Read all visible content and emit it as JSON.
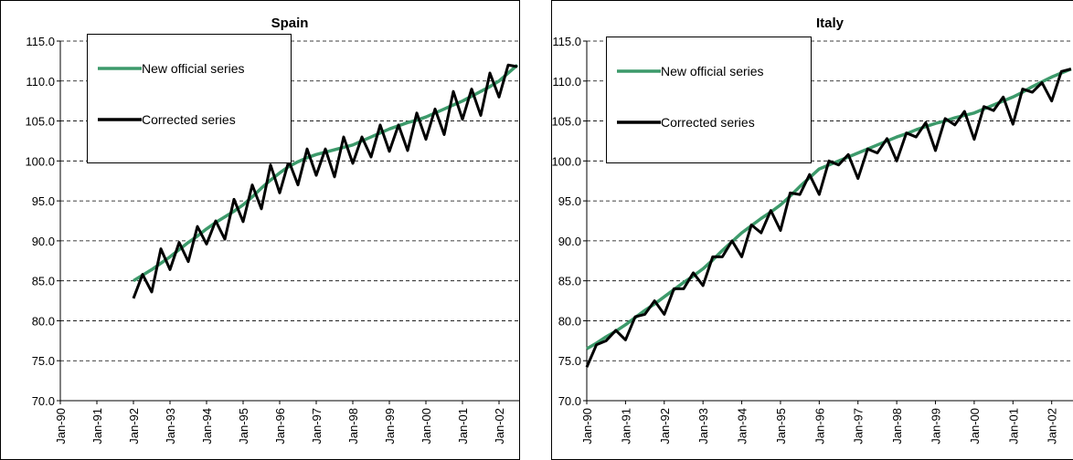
{
  "chart_data": [
    {
      "type": "line",
      "title": "Spain",
      "x": [
        1992,
        1992.25,
        1992.5,
        1992.75,
        1993,
        1993.25,
        1993.5,
        1993.75,
        1994,
        1994.25,
        1994.5,
        1994.75,
        1995,
        1995.25,
        1995.5,
        1995.75,
        1996,
        1996.25,
        1996.5,
        1996.75,
        1997,
        1997.25,
        1997.5,
        1997.75,
        1998,
        1998.25,
        1998.5,
        1998.75,
        1999,
        1999.25,
        1999.5,
        1999.75,
        2000,
        2000.25,
        2000.5,
        2000.75,
        2001,
        2001.25,
        2001.5,
        2001.75,
        2002,
        2002.25,
        2002.5
      ],
      "series": [
        {
          "name": "New official series",
          "color": "#3d9a6b",
          "values": [
            85,
            85.7,
            86.4,
            87.2,
            88,
            88.9,
            89.8,
            90.6,
            91.5,
            92.3,
            93,
            93.7,
            94.5,
            95.5,
            96.6,
            97.6,
            98.5,
            99.3,
            99.9,
            100.4,
            100.8,
            101.1,
            101.4,
            101.7,
            102,
            102.5,
            103,
            103.5,
            104,
            104.4,
            104.8,
            105.1,
            105.5,
            106,
            106.5,
            107,
            107.5,
            108.1,
            108.7,
            109.3,
            110,
            111,
            112
          ]
        },
        {
          "name": "Corrected series",
          "color": "#000000",
          "values": [
            82.8,
            85.8,
            83.6,
            89,
            86.4,
            89.8,
            87.4,
            91.8,
            89.6,
            92.5,
            90.2,
            95.2,
            92.4,
            97,
            94,
            99.5,
            96,
            100,
            97,
            101.5,
            98.2,
            101.5,
            98,
            103,
            99.7,
            103,
            100.5,
            104.5,
            101.2,
            104.5,
            101.3,
            106,
            102.7,
            106.5,
            103.3,
            108.7,
            105.2,
            109,
            105.7,
            111,
            108,
            112,
            111.8
          ]
        }
      ],
      "xlim": [
        1990,
        2002.55
      ],
      "ylim": [
        70,
        115
      ],
      "xticks": [
        {
          "value": 1990,
          "label": "Jan-90"
        },
        {
          "value": 1991,
          "label": "Jan-91"
        },
        {
          "value": 1992,
          "label": "Jan-92"
        },
        {
          "value": 1993,
          "label": "Jan-93"
        },
        {
          "value": 1994,
          "label": "Jan-94"
        },
        {
          "value": 1995,
          "label": "Jan-95"
        },
        {
          "value": 1996,
          "label": "Jan-96"
        },
        {
          "value": 1997,
          "label": "Jan-97"
        },
        {
          "value": 1998,
          "label": "Jan-98"
        },
        {
          "value": 1999,
          "label": "Jan-99"
        },
        {
          "value": 2000,
          "label": "Jan-00"
        },
        {
          "value": 2001,
          "label": "Jan-01"
        },
        {
          "value": 2002,
          "label": "Jan-02"
        }
      ],
      "yticks": [
        {
          "value": 70,
          "label": "70.0"
        },
        {
          "value": 75,
          "label": "75.0"
        },
        {
          "value": 80,
          "label": "80.0"
        },
        {
          "value": 85,
          "label": "85.0"
        },
        {
          "value": 90,
          "label": "90.0"
        },
        {
          "value": 95,
          "label": "95.0"
        },
        {
          "value": 100,
          "label": "100.0"
        },
        {
          "value": 105,
          "label": "105.0"
        },
        {
          "value": 110,
          "label": "110.0"
        },
        {
          "value": 115,
          "label": "115.0"
        }
      ],
      "grid": true,
      "legend": "upper left"
    },
    {
      "type": "line",
      "title": "Italy",
      "x": [
        1990,
        1990.25,
        1990.5,
        1990.75,
        1991,
        1991.25,
        1991.5,
        1991.75,
        1992,
        1992.25,
        1992.5,
        1992.75,
        1993,
        1993.25,
        1993.5,
        1993.75,
        1994,
        1994.25,
        1994.5,
        1994.75,
        1995,
        1995.25,
        1995.5,
        1995.75,
        1996,
        1996.25,
        1996.5,
        1996.75,
        1997,
        1997.25,
        1997.5,
        1997.75,
        1998,
        1998.25,
        1998.5,
        1998.75,
        1999,
        1999.25,
        1999.5,
        1999.75,
        2000,
        2000.25,
        2000.5,
        2000.75,
        2001,
        2001.25,
        2001.5,
        2001.75,
        2002,
        2002.25,
        2002.5
      ],
      "series": [
        {
          "name": "New official series",
          "color": "#3d9a6b",
          "values": [
            76.5,
            77.2,
            78,
            78.7,
            79.5,
            80.4,
            81.3,
            82.1,
            83,
            83.9,
            84.8,
            85.6,
            86.5,
            87.6,
            88.8,
            89.9,
            91,
            91.9,
            92.8,
            93.6,
            94.5,
            95.6,
            96.8,
            97.9,
            99,
            99.5,
            100,
            100.5,
            101,
            101.5,
            102,
            102.5,
            103,
            103.4,
            103.9,
            104.3,
            104.7,
            105,
            105.4,
            105.7,
            106,
            106.5,
            107,
            107.5,
            108,
            108.6,
            109.3,
            109.9,
            110.5,
            111,
            111.5
          ]
        },
        {
          "name": "Corrected series",
          "color": "#000000",
          "values": [
            74.2,
            77,
            77.5,
            78.8,
            77.6,
            80.5,
            80.8,
            82.5,
            80.8,
            84,
            84,
            86,
            84.4,
            88,
            88,
            90,
            88,
            92,
            91,
            93.8,
            91.3,
            96,
            95.8,
            98.3,
            95.8,
            100,
            99.5,
            100.8,
            97.8,
            101.5,
            101,
            102.8,
            100,
            103.5,
            103,
            104.8,
            101.3,
            105.3,
            104.5,
            106.2,
            102.7,
            106.8,
            106.3,
            108,
            104.6,
            109,
            108.6,
            109.8,
            107.5,
            111.2,
            111.5
          ]
        }
      ],
      "xlim": [
        1990,
        2002.55
      ],
      "ylim": [
        70,
        115
      ],
      "xticks": [
        {
          "value": 1990,
          "label": "Jan-90"
        },
        {
          "value": 1991,
          "label": "Jan-91"
        },
        {
          "value": 1992,
          "label": "Jan-92"
        },
        {
          "value": 1993,
          "label": "Jan-93"
        },
        {
          "value": 1994,
          "label": "Jan-94"
        },
        {
          "value": 1995,
          "label": "Jan-95"
        },
        {
          "value": 1996,
          "label": "Jan-96"
        },
        {
          "value": 1997,
          "label": "Jan-97"
        },
        {
          "value": 1998,
          "label": "Jan-98"
        },
        {
          "value": 1999,
          "label": "Jan-99"
        },
        {
          "value": 2000,
          "label": "Jan-00"
        },
        {
          "value": 2001,
          "label": "Jan-01"
        },
        {
          "value": 2002,
          "label": "Jan-02"
        }
      ],
      "yticks": [
        {
          "value": 70,
          "label": "70.0"
        },
        {
          "value": 75,
          "label": "75.0"
        },
        {
          "value": 80,
          "label": "80.0"
        },
        {
          "value": 85,
          "label": "85.0"
        },
        {
          "value": 90,
          "label": "90.0"
        },
        {
          "value": 95,
          "label": "95.0"
        },
        {
          "value": 100,
          "label": "100.0"
        },
        {
          "value": 105,
          "label": "105.0"
        },
        {
          "value": 110,
          "label": "110.0"
        },
        {
          "value": 115,
          "label": "115.0"
        }
      ],
      "grid": true,
      "legend": "upper left"
    }
  ]
}
